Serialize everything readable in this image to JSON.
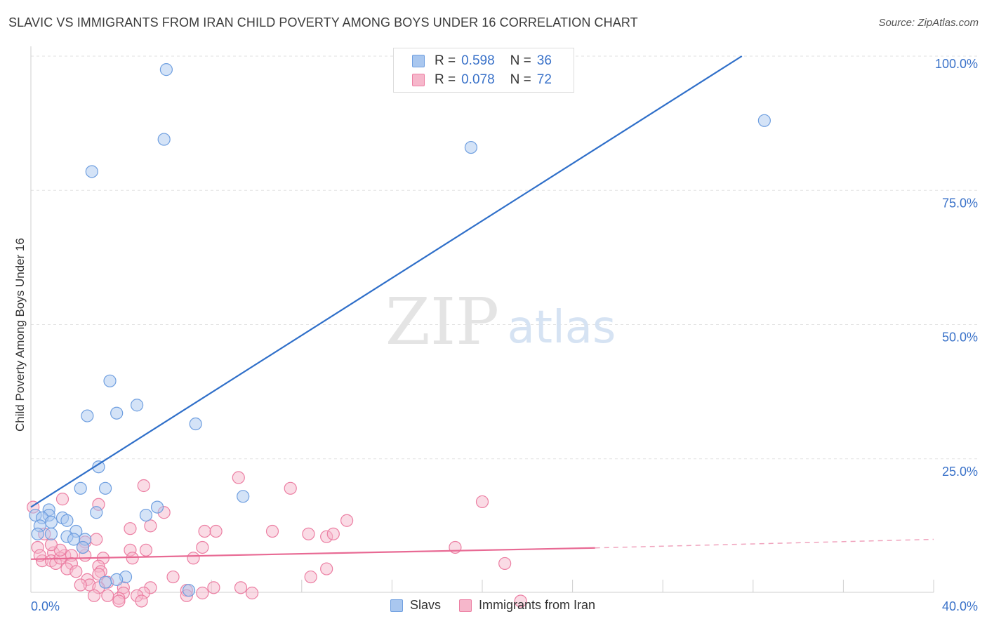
{
  "header": {
    "title": "SLAVIC VS IMMIGRANTS FROM IRAN CHILD POVERTY AMONG BOYS UNDER 16 CORRELATION CHART",
    "source": "Source: ZipAtlas.com"
  },
  "watermark": {
    "zip": "ZIP",
    "atlas": "atlas"
  },
  "legend_top": [
    {
      "r_label": "R =",
      "r_value": "0.598",
      "n_label": "N =",
      "n_value": "36",
      "color": "#a9c7ef"
    },
    {
      "r_label": "R =",
      "r_value": "0.078",
      "n_label": "N =",
      "n_value": "72",
      "color": "#f6b7cb"
    }
  ],
  "legend_bottom": [
    {
      "label": "Slavs",
      "color": "#a9c7ef"
    },
    {
      "label": "Immigrants from Iran",
      "color": "#f6b7cb"
    }
  ],
  "chart_data": {
    "type": "scatter",
    "title": "SLAVIC VS IMMIGRANTS FROM IRAN CHILD POVERTY AMONG BOYS UNDER 16 CORRELATION CHART",
    "xlabel": "",
    "ylabel": "Child Poverty Among Boys Under 16",
    "xlim": [
      0,
      40
    ],
    "ylim": [
      0,
      100
    ],
    "x_tick_labels": [
      "0.0%",
      "40.0%"
    ],
    "y_tick_labels": [
      {
        "value": 25,
        "label": "25.0%"
      },
      {
        "value": 50,
        "label": "50.0%"
      },
      {
        "value": 75,
        "label": "75.0%"
      },
      {
        "value": 100,
        "label": "100.0%"
      }
    ],
    "grid": true,
    "series": [
      {
        "name": "Slavs",
        "color": "#6f9fe0",
        "fill": "#a9c7ef",
        "trend": {
          "x": [
            0,
            31.5
          ],
          "y": [
            16.0,
            100
          ]
        },
        "points": [
          [
            6.0,
            97.5
          ],
          [
            5.9,
            84.5
          ],
          [
            2.7,
            78.5
          ],
          [
            32.5,
            88.0
          ],
          [
            19.5,
            83.0
          ],
          [
            3.5,
            39.5
          ],
          [
            4.7,
            35.0
          ],
          [
            3.8,
            33.5
          ],
          [
            2.5,
            33.0
          ],
          [
            7.3,
            31.5
          ],
          [
            3.0,
            23.5
          ],
          [
            2.2,
            19.5
          ],
          [
            3.3,
            19.5
          ],
          [
            9.4,
            18.0
          ],
          [
            0.8,
            15.5
          ],
          [
            0.2,
            14.5
          ],
          [
            0.8,
            14.5
          ],
          [
            5.6,
            16.0
          ],
          [
            2.9,
            15.0
          ],
          [
            5.1,
            14.5
          ],
          [
            1.4,
            14.0
          ],
          [
            0.5,
            14.0
          ],
          [
            0.9,
            13.2
          ],
          [
            1.6,
            13.5
          ],
          [
            0.4,
            12.5
          ],
          [
            2.0,
            11.5
          ],
          [
            0.3,
            11.0
          ],
          [
            0.9,
            11.0
          ],
          [
            1.6,
            10.5
          ],
          [
            2.4,
            10.0
          ],
          [
            1.9,
            10.0
          ],
          [
            2.3,
            8.5
          ],
          [
            4.2,
            3.0
          ],
          [
            3.8,
            2.5
          ],
          [
            3.3,
            2.0
          ],
          [
            7.0,
            0.5
          ]
        ]
      },
      {
        "name": "Immigrants from Iran",
        "color": "#ec7fa3",
        "fill": "#f6b7cb",
        "trend": {
          "x": [
            0,
            25
          ],
          "y": [
            6.3,
            8.4
          ],
          "dash_to": [
            40,
            10.0
          ]
        },
        "points": [
          [
            0.1,
            16.0
          ],
          [
            1.4,
            17.5
          ],
          [
            3.0,
            16.5
          ],
          [
            5.0,
            20.0
          ],
          [
            9.2,
            21.5
          ],
          [
            11.5,
            19.5
          ],
          [
            20.0,
            17.0
          ],
          [
            4.4,
            12.0
          ],
          [
            5.9,
            15.0
          ],
          [
            5.3,
            12.5
          ],
          [
            14.0,
            13.5
          ],
          [
            12.3,
            11.0
          ],
          [
            7.7,
            11.5
          ],
          [
            8.2,
            11.5
          ],
          [
            10.7,
            11.5
          ],
          [
            13.1,
            10.5
          ],
          [
            13.4,
            11.0
          ],
          [
            18.8,
            8.5
          ],
          [
            2.4,
            9.5
          ],
          [
            0.6,
            11.0
          ],
          [
            0.3,
            8.5
          ],
          [
            1.0,
            7.5
          ],
          [
            1.5,
            7.0
          ],
          [
            2.4,
            7.0
          ],
          [
            4.4,
            8.0
          ],
          [
            5.1,
            8.0
          ],
          [
            7.6,
            8.5
          ],
          [
            7.2,
            6.5
          ],
          [
            1.8,
            7.0
          ],
          [
            2.3,
            8.5
          ],
          [
            0.5,
            6.0
          ],
          [
            0.9,
            6.0
          ],
          [
            1.1,
            5.5
          ],
          [
            1.3,
            6.5
          ],
          [
            1.8,
            5.5
          ],
          [
            3.2,
            6.5
          ],
          [
            4.5,
            6.5
          ],
          [
            3.0,
            5.0
          ],
          [
            1.6,
            4.5
          ],
          [
            2.0,
            4.0
          ],
          [
            3.1,
            4.0
          ],
          [
            2.5,
            2.5
          ],
          [
            3.4,
            2.0
          ],
          [
            2.6,
            1.5
          ],
          [
            2.2,
            1.5
          ],
          [
            3.0,
            1.0
          ],
          [
            4.1,
            1.0
          ],
          [
            5.3,
            1.0
          ],
          [
            6.3,
            3.0
          ],
          [
            6.9,
            0.5
          ],
          [
            8.1,
            1.0
          ],
          [
            9.3,
            1.0
          ],
          [
            12.4,
            3.0
          ],
          [
            13.1,
            4.5
          ],
          [
            21.0,
            5.5
          ],
          [
            7.6,
            0.0
          ],
          [
            5.0,
            0.0
          ],
          [
            4.1,
            0.0
          ],
          [
            9.8,
            0.0
          ],
          [
            3.4,
            -0.5
          ],
          [
            4.7,
            -0.5
          ],
          [
            3.9,
            -1.0
          ],
          [
            2.8,
            -0.5
          ],
          [
            6.9,
            -0.5
          ],
          [
            3.9,
            -1.5
          ],
          [
            21.7,
            -1.5
          ],
          [
            4.9,
            -1.5
          ],
          [
            1.3,
            8.0
          ],
          [
            0.9,
            9.0
          ],
          [
            0.4,
            7.0
          ],
          [
            2.9,
            10.0
          ],
          [
            3.0,
            3.5
          ]
        ]
      }
    ]
  }
}
